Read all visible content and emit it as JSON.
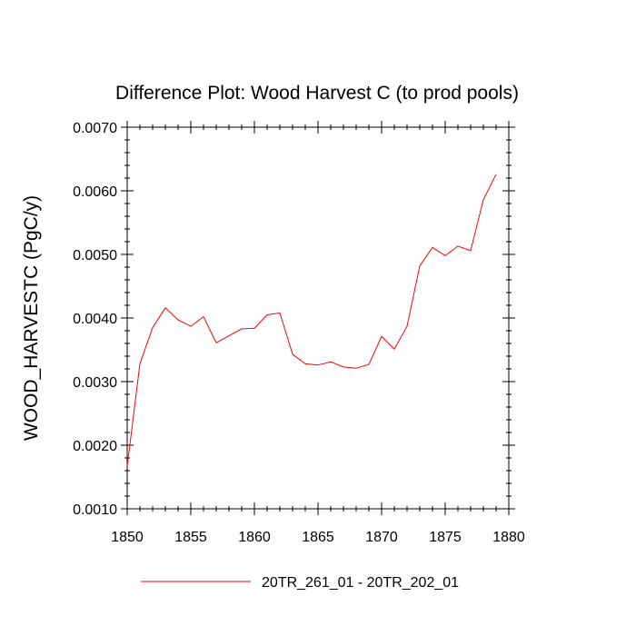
{
  "chart_data": {
    "type": "line",
    "title": "Difference Plot: Wood Harvest C (to prod pools)",
    "xlabel": "",
    "ylabel": "WOOD_HARVESTC  (PgC/y)",
    "xlim": [
      1850,
      1880
    ],
    "ylim": [
      0.001,
      0.007
    ],
    "x_ticks": [
      1850,
      1855,
      1860,
      1865,
      1870,
      1875,
      1880
    ],
    "x_tick_labels": [
      "1850",
      "1855",
      "1860",
      "1865",
      "1870",
      "1875",
      "1880"
    ],
    "y_ticks": [
      0.001,
      0.002,
      0.003,
      0.004,
      0.005,
      0.006,
      0.007
    ],
    "y_tick_labels": [
      "0.0010",
      "0.0020",
      "0.0030",
      "0.0040",
      "0.0050",
      "0.0060",
      "0.0070"
    ],
    "x": [
      1850,
      1851,
      1852,
      1853,
      1854,
      1855,
      1856,
      1857,
      1858,
      1859,
      1860,
      1861,
      1862,
      1863,
      1864,
      1865,
      1866,
      1867,
      1868,
      1869,
      1870,
      1871,
      1872,
      1873,
      1874,
      1875,
      1876,
      1877,
      1878,
      1879
    ],
    "series": [
      {
        "name": "20TR_261_01 - 20TR_202_01",
        "color": "#ff0000",
        "values": [
          0.00167,
          0.00328,
          0.00385,
          0.00416,
          0.00397,
          0.00387,
          0.00402,
          0.00361,
          0.00372,
          0.00383,
          0.00384,
          0.00405,
          0.00408,
          0.00343,
          0.00328,
          0.00326,
          0.00331,
          0.00323,
          0.00321,
          0.00327,
          0.00371,
          0.00351,
          0.00387,
          0.00482,
          0.00511,
          0.00498,
          0.00513,
          0.00506,
          0.00586,
          0.00626
        ]
      }
    ],
    "grid": false,
    "legend_position": "bottom-center"
  }
}
